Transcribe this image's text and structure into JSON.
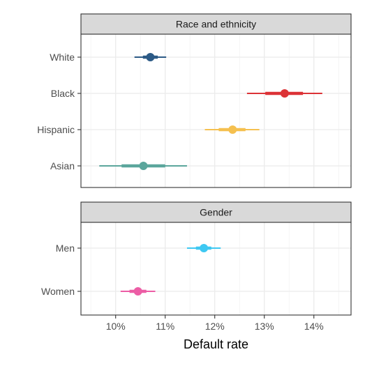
{
  "chart_data": {
    "type": "scatter",
    "xlabel": "Default rate",
    "xlim": [
      9.3,
      14.75
    ],
    "x_ticks": [
      10,
      11,
      12,
      13,
      14
    ],
    "x_tick_labels": [
      "10%",
      "11%",
      "12%",
      "13%",
      "14%"
    ],
    "grid": true,
    "panels": [
      {
        "title": "Race and ethnicity",
        "categories": [
          "White",
          "Black",
          "Hispanic",
          "Asian"
        ],
        "points": [
          {
            "label": "White",
            "estimate": 10.7,
            "inner": [
              10.55,
              10.85
            ],
            "outer": [
              10.38,
              11.02
            ],
            "color": "#2c5a86"
          },
          {
            "label": "Black",
            "estimate": 13.41,
            "inner": [
              13.02,
              13.78
            ],
            "outer": [
              12.65,
              14.17
            ],
            "color": "#dc3236"
          },
          {
            "label": "Hispanic",
            "estimate": 12.36,
            "inner": [
              12.08,
              12.62
            ],
            "outer": [
              11.8,
              12.9
            ],
            "color": "#f5c04f"
          },
          {
            "label": "Asian",
            "estimate": 10.56,
            "inner": [
              10.12,
              11.0
            ],
            "outer": [
              9.67,
              11.44
            ],
            "color": "#5ba69c"
          }
        ]
      },
      {
        "title": "Gender",
        "categories": [
          "Men",
          "Women"
        ],
        "points": [
          {
            "label": "Men",
            "estimate": 11.78,
            "inner": [
              11.62,
              11.93
            ],
            "outer": [
              11.44,
              12.12
            ],
            "color": "#3ec8f2"
          },
          {
            "label": "Women",
            "estimate": 10.45,
            "inner": [
              10.28,
              10.62
            ],
            "outer": [
              10.1,
              10.8
            ],
            "color": "#ec5da5"
          }
        ]
      }
    ]
  }
}
